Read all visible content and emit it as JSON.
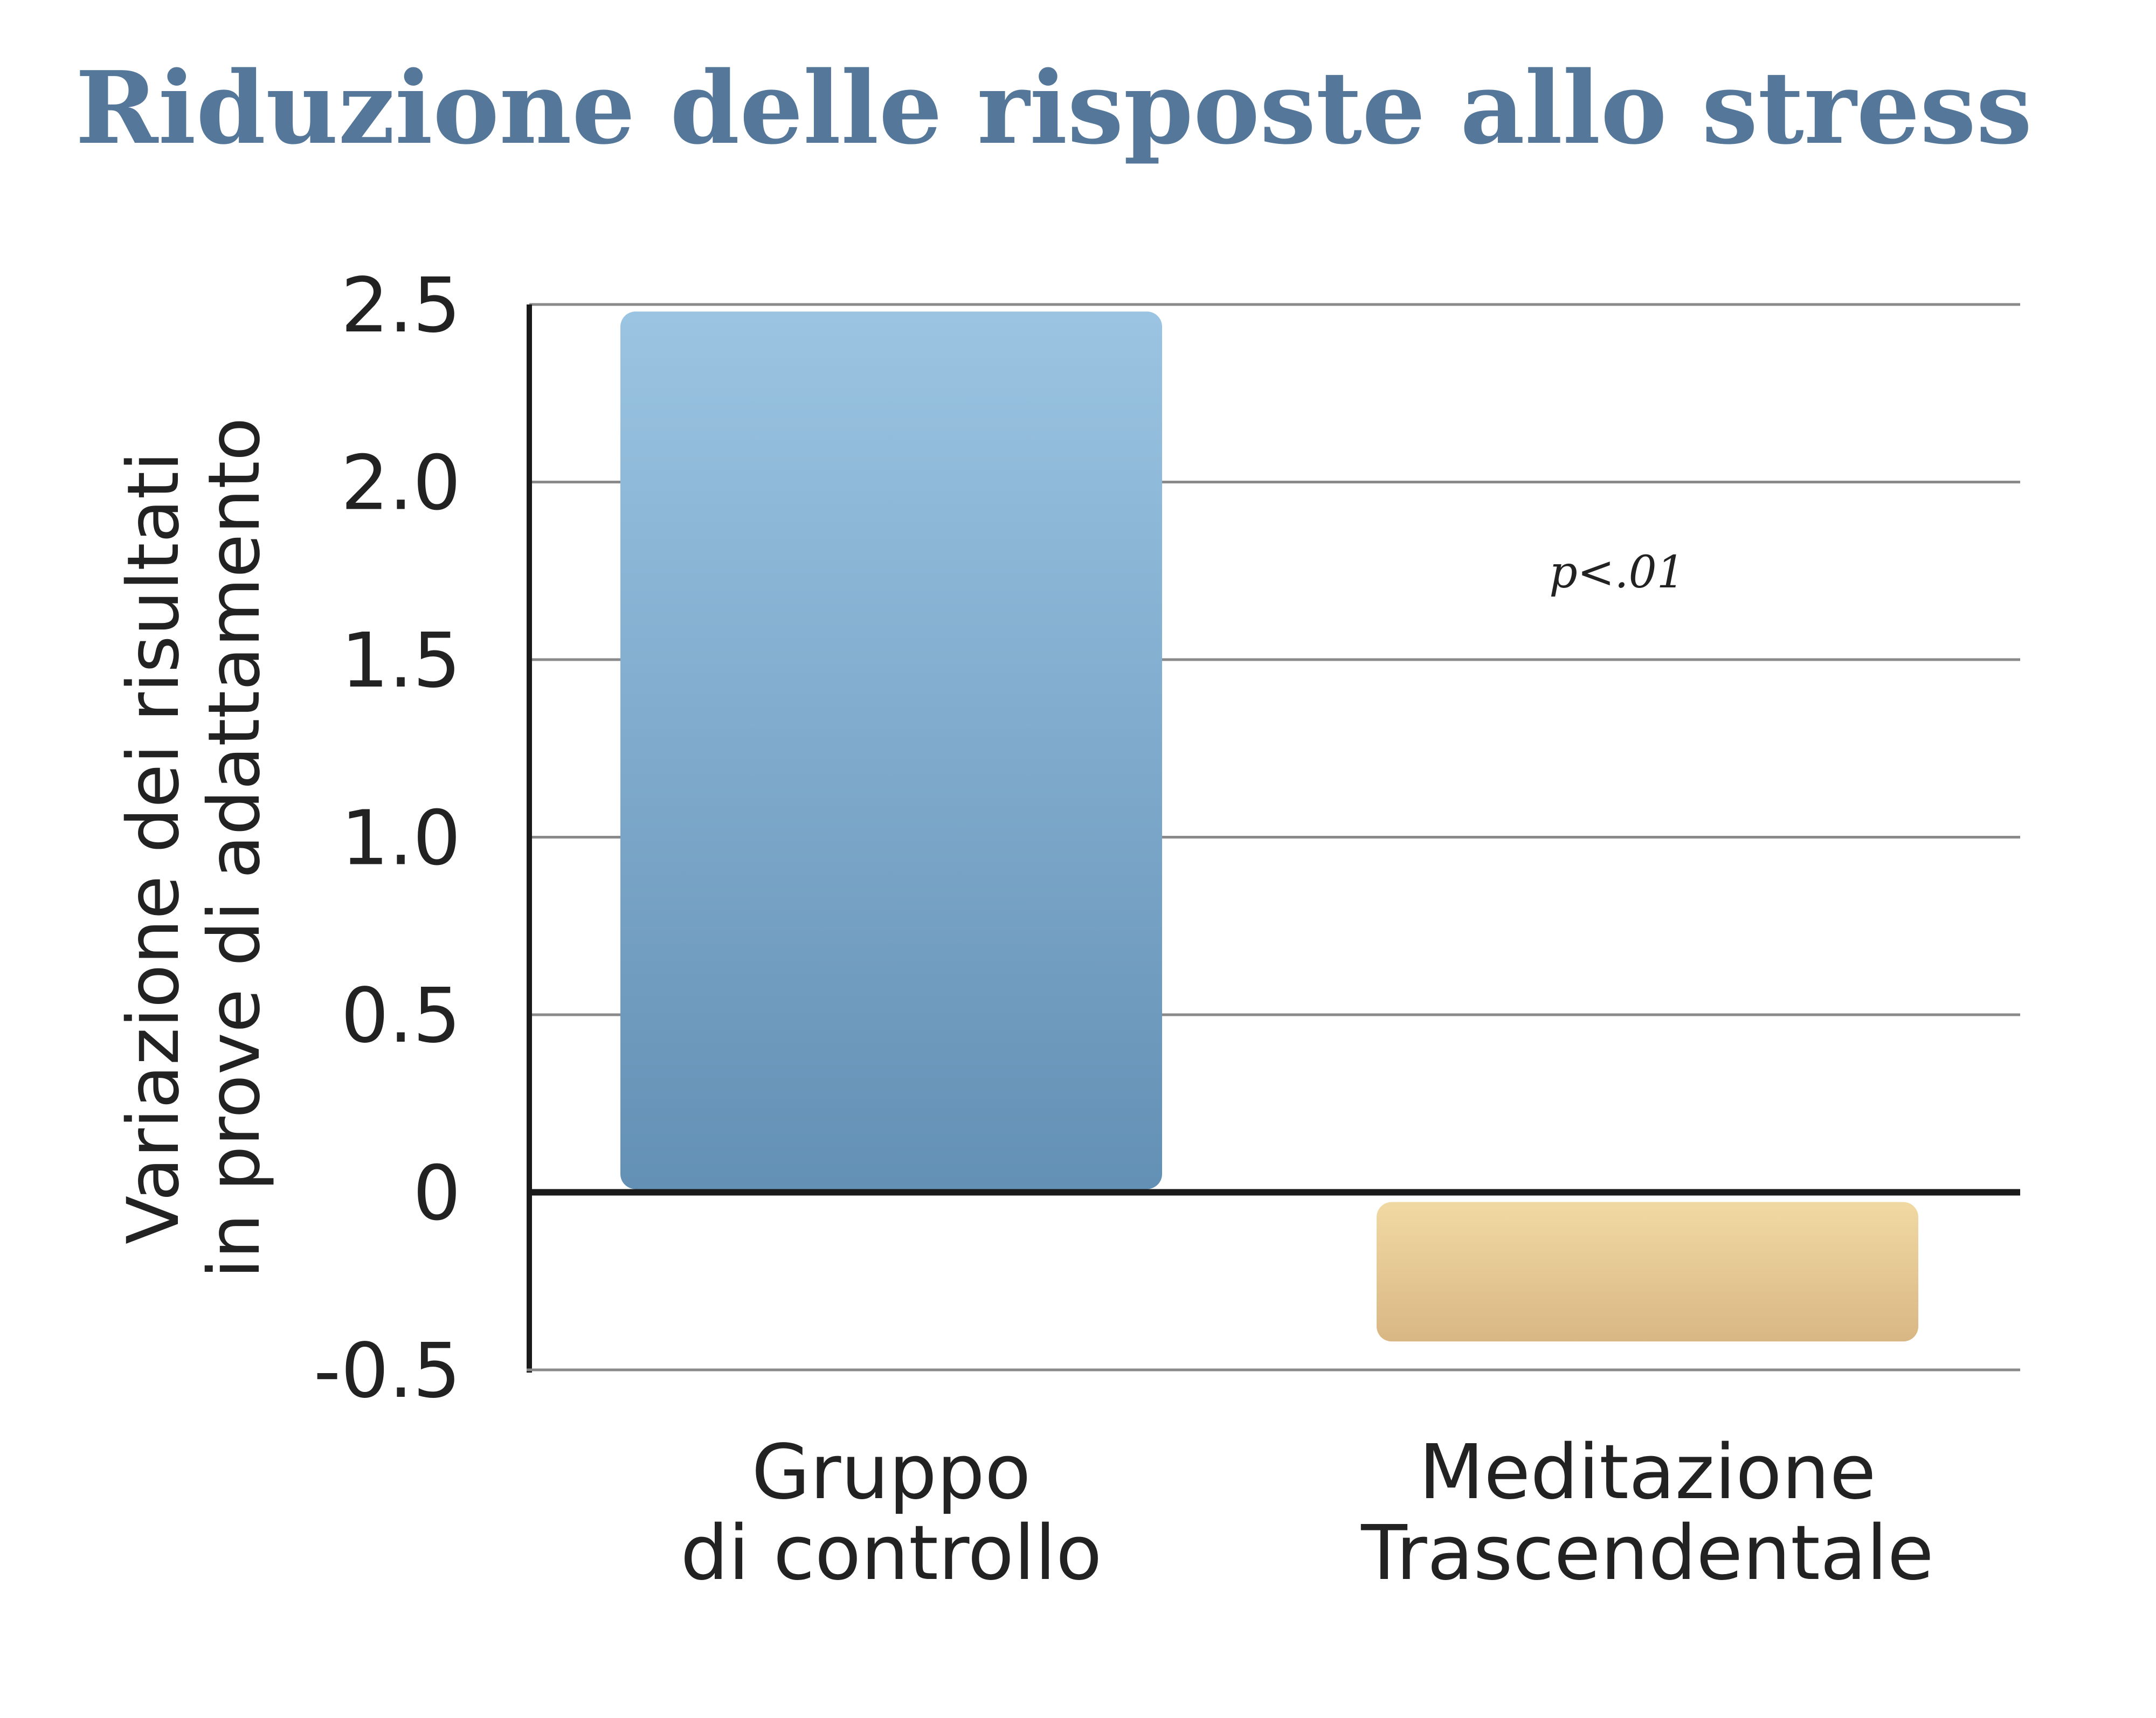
{
  "chart_data": {
    "type": "bar",
    "title": "Riduzione delle risposte allo stress",
    "ylabel_lines": [
      "Variazione dei risultati",
      "in prove di adattamento"
    ],
    "categories": [
      {
        "lines": [
          "Gruppo",
          "di controllo"
        ]
      },
      {
        "lines": [
          "Meditazione",
          "Trascendentale"
        ]
      }
    ],
    "values": [
      2.48,
      -0.42
    ],
    "bar_colors": [
      {
        "top": "#9bc4e2",
        "bottom": "#6390b5"
      },
      {
        "top": "#f1d9a3",
        "bottom": "#d9b784"
      }
    ],
    "yticks": [
      2.5,
      2.0,
      1.5,
      1.0,
      0.5,
      0,
      -0.5
    ],
    "ytick_labels": [
      "2.5",
      "2.0",
      "1.5",
      "1.0",
      "0.5",
      "0",
      "-0.5"
    ],
    "ylim": [
      -0.5,
      2.5
    ],
    "grid": true,
    "annotation": "p<.01",
    "title_color": "#55789a"
  }
}
